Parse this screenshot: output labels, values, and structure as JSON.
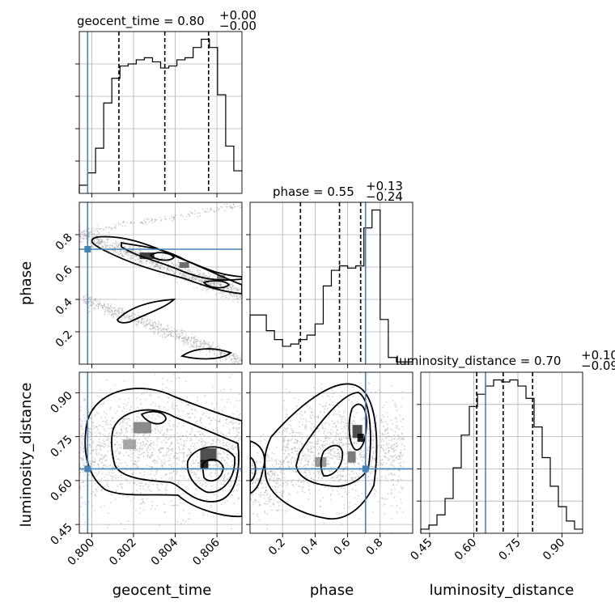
{
  "chart_data": {
    "type": "corner",
    "parameters": [
      {
        "name": "geocent_time",
        "title": "geocent_time = 0.80",
        "title_main": "geocent_time = 0.80",
        "title_plus": "+0.00",
        "title_minus": "−0.00",
        "range": [
          0.7994,
          0.8072
        ],
        "ticks": [
          0.8,
          0.802,
          0.804,
          0.806
        ],
        "tick_labels": [
          "0.800",
          "0.802",
          "0.804",
          "0.806"
        ],
        "truth": 0.7998,
        "quantiles": [
          0.8013,
          0.8035,
          0.8056
        ],
        "hist_counts": [
          0.2,
          0.5,
          1.1,
          2.2,
          2.8,
          3.1,
          3.15,
          3.25,
          3.3,
          3.2,
          3.05,
          3.1,
          3.25,
          3.3,
          3.55,
          3.75,
          3.55,
          2.4,
          1.15,
          0.55
        ]
      },
      {
        "name": "phase",
        "title": "phase = 0.55",
        "title_main": "phase = 0.55",
        "title_plus": "+0.13",
        "title_minus": "−0.24",
        "range": [
          0.0,
          1.0
        ],
        "ticks": [
          0.2,
          0.4,
          0.6,
          0.8
        ],
        "tick_labels": [
          "0.2",
          "0.4",
          "0.6",
          "0.8"
        ],
        "truth": 0.71,
        "quantiles": [
          0.31,
          0.55,
          0.68
        ],
        "hist_counts": [
          1.1,
          1.1,
          0.75,
          0.55,
          0.4,
          0.45,
          0.55,
          0.65,
          0.9,
          1.75,
          2.1,
          2.2,
          2.15,
          2.2,
          3.05,
          3.45,
          1.0,
          0.15,
          0.05,
          0.05
        ]
      },
      {
        "name": "luminosity_distance",
        "title": "luminosity_distance = 0.70",
        "title_main": "luminosity_distance = 0.70",
        "title_plus": "+0.10",
        "title_minus": "−0.09",
        "range": [
          0.42,
          0.97
        ],
        "ticks": [
          0.45,
          0.6,
          0.75,
          0.9
        ],
        "tick_labels": [
          "0.45",
          "0.60",
          "0.75",
          "0.90"
        ],
        "truth": 0.64,
        "quantiles": [
          0.61,
          0.7,
          0.8
        ],
        "hist_counts": [
          0.1,
          0.2,
          0.45,
          0.85,
          1.6,
          2.4,
          3.1,
          3.4,
          3.6,
          3.75,
          3.7,
          3.75,
          3.6,
          3.3,
          2.6,
          1.85,
          1.15,
          0.65,
          0.3,
          0.1
        ]
      }
    ],
    "truth_values": {
      "geocent_time": 0.7998,
      "phase": 0.71,
      "luminosity_distance": 0.64
    },
    "color_truth": "#4682b4",
    "color_hist": "#000000",
    "contour_color": "#000000"
  }
}
